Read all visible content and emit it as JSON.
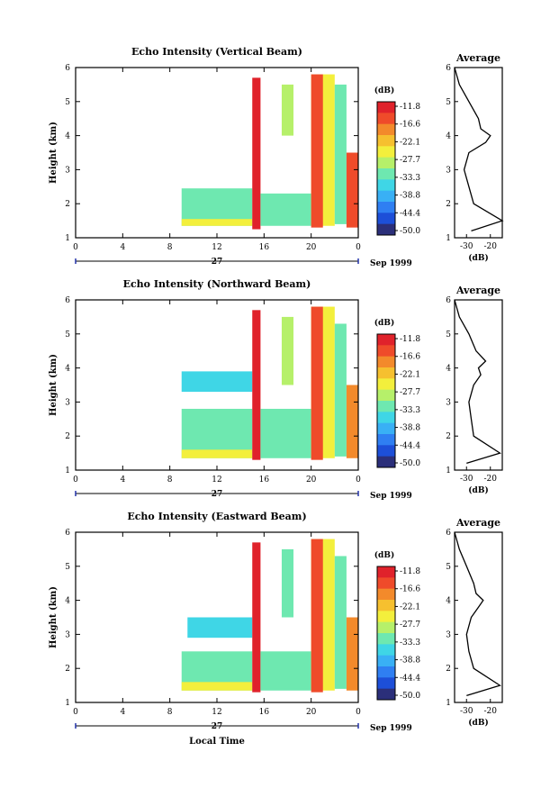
{
  "figure": {
    "xlabel": "Local Time",
    "date_day": "27",
    "date_month_year": "Sep 1999",
    "colorbar_unit": "(dB)",
    "colorbar_ticks": [
      "-11.8",
      "-16.6",
      "-22.1",
      "-27.7",
      "-33.3",
      "-38.8",
      "-44.4",
      "-50.0"
    ],
    "colormap": [
      "#2b2f7a",
      "#1d4fd8",
      "#2f7ff2",
      "#39b0f5",
      "#3fd6e6",
      "#6ee8b0",
      "#b6f06a",
      "#f3ef3c",
      "#f6c02f",
      "#f38a2b",
      "#ef4b2a",
      "#e0222b"
    ],
    "average_title": "Average",
    "average_xlabel": "(dB)"
  },
  "chart_data": [
    {
      "type": "heatmap",
      "title": "Echo Intensity (Vertical Beam)",
      "xlabel": "",
      "ylabel": "Height (km)",
      "xlim": [
        0,
        24
      ],
      "x_ticks": [
        "0",
        "4",
        "8",
        "12",
        "16",
        "20",
        "0"
      ],
      "ylim": [
        1,
        6
      ],
      "y_ticks": [
        "1",
        "2",
        "3",
        "4",
        "5",
        "6"
      ],
      "zlim": [
        -50.0,
        -11.8
      ],
      "regions": [
        {
          "t": [
            9.0,
            15.0
          ],
          "h": [
            1.35,
            2.45
          ],
          "db": -34
        },
        {
          "t": [
            9.0,
            15.0
          ],
          "h": [
            1.35,
            1.55
          ],
          "db": -24
        },
        {
          "t": [
            15.0,
            15.7
          ],
          "h": [
            1.25,
            5.7
          ],
          "db": -12
        },
        {
          "t": [
            15.7,
            20.0
          ],
          "h": [
            1.35,
            2.3
          ],
          "db": -32
        },
        {
          "t": [
            17.5,
            18.5
          ],
          "h": [
            4.0,
            5.5
          ],
          "db": -30
        },
        {
          "t": [
            20.0,
            22.0
          ],
          "h": [
            1.35,
            5.8
          ],
          "db": -27
        },
        {
          "t": [
            20.0,
            21.0
          ],
          "h": [
            1.3,
            5.8
          ],
          "db": -15
        },
        {
          "t": [
            22.0,
            23.0
          ],
          "h": [
            1.4,
            5.5
          ],
          "db": -33
        },
        {
          "t": [
            23.0,
            24.0
          ],
          "h": [
            1.3,
            3.5
          ],
          "db": -14
        }
      ],
      "average": {
        "xlim": [
          -35,
          -15
        ],
        "x_ticks": [
          "-30",
          "-20"
        ],
        "height": [
          1.2,
          1.5,
          2.0,
          2.5,
          3.0,
          3.5,
          3.8,
          4.0,
          4.2,
          4.5,
          5.0,
          5.5,
          6.0
        ],
        "db": [
          -28,
          -15,
          -27,
          -29,
          -31,
          -29,
          -22,
          -20,
          -24,
          -25,
          -29,
          -33,
          -35
        ]
      }
    },
    {
      "type": "heatmap",
      "title": "Echo Intensity (Northward Beam)",
      "xlabel": "",
      "ylabel": "Height (km)",
      "xlim": [
        0,
        24
      ],
      "x_ticks": [
        "0",
        "4",
        "8",
        "12",
        "16",
        "20",
        "0"
      ],
      "ylim": [
        1,
        6
      ],
      "y_ticks": [
        "1",
        "2",
        "3",
        "4",
        "5",
        "6"
      ],
      "zlim": [
        -50.0,
        -11.8
      ],
      "regions": [
        {
          "t": [
            9.0,
            15.0
          ],
          "h": [
            1.35,
            2.8
          ],
          "db": -33
        },
        {
          "t": [
            9.0,
            15.0
          ],
          "h": [
            3.3,
            3.9
          ],
          "db": -35
        },
        {
          "t": [
            9.0,
            15.0
          ],
          "h": [
            1.35,
            1.6
          ],
          "db": -24
        },
        {
          "t": [
            15.0,
            15.7
          ],
          "h": [
            1.3,
            5.7
          ],
          "db": -12
        },
        {
          "t": [
            15.7,
            20.0
          ],
          "h": [
            1.35,
            2.8
          ],
          "db": -31
        },
        {
          "t": [
            17.5,
            18.5
          ],
          "h": [
            3.5,
            5.5
          ],
          "db": -30
        },
        {
          "t": [
            20.0,
            22.0
          ],
          "h": [
            1.35,
            5.8
          ],
          "db": -26
        },
        {
          "t": [
            20.0,
            21.0
          ],
          "h": [
            1.3,
            5.8
          ],
          "db": -15
        },
        {
          "t": [
            22.0,
            23.0
          ],
          "h": [
            1.4,
            5.3
          ],
          "db": -32
        },
        {
          "t": [
            23.0,
            24.0
          ],
          "h": [
            1.35,
            3.5
          ],
          "db": -20
        }
      ],
      "average": {
        "xlim": [
          -35,
          -15
        ],
        "x_ticks": [
          "-30",
          "-20"
        ],
        "height": [
          1.2,
          1.5,
          2.0,
          2.5,
          3.0,
          3.5,
          3.8,
          4.0,
          4.2,
          4.5,
          5.0,
          5.5,
          6.0
        ],
        "db": [
          -30,
          -16,
          -27,
          -28,
          -29,
          -27,
          -24,
          -25,
          -22,
          -26,
          -29,
          -33,
          -35
        ]
      }
    },
    {
      "type": "heatmap",
      "title": "Echo Intensity (Eastward Beam)",
      "xlabel": "Local Time",
      "ylabel": "Height (km)",
      "xlim": [
        0,
        24
      ],
      "x_ticks": [
        "0",
        "4",
        "8",
        "12",
        "16",
        "20",
        "0"
      ],
      "ylim": [
        1,
        6
      ],
      "y_ticks": [
        "1",
        "2",
        "3",
        "4",
        "5",
        "6"
      ],
      "zlim": [
        -50.0,
        -11.8
      ],
      "regions": [
        {
          "t": [
            9.0,
            15.0
          ],
          "h": [
            1.35,
            2.5
          ],
          "db": -34
        },
        {
          "t": [
            9.5,
            15.0
          ],
          "h": [
            2.9,
            3.5
          ],
          "db": -35
        },
        {
          "t": [
            9.0,
            15.0
          ],
          "h": [
            1.35,
            1.6
          ],
          "db": -24
        },
        {
          "t": [
            15.0,
            15.7
          ],
          "h": [
            1.3,
            5.7
          ],
          "db": -12
        },
        {
          "t": [
            15.7,
            20.0
          ],
          "h": [
            1.35,
            2.5
          ],
          "db": -31
        },
        {
          "t": [
            17.5,
            18.5
          ],
          "h": [
            3.5,
            5.5
          ],
          "db": -31
        },
        {
          "t": [
            20.0,
            22.0
          ],
          "h": [
            1.35,
            5.8
          ],
          "db": -25
        },
        {
          "t": [
            20.0,
            21.0
          ],
          "h": [
            1.3,
            5.8
          ],
          "db": -14
        },
        {
          "t": [
            22.0,
            23.0
          ],
          "h": [
            1.4,
            5.3
          ],
          "db": -32
        },
        {
          "t": [
            23.0,
            24.0
          ],
          "h": [
            1.35,
            3.5
          ],
          "db": -20
        }
      ],
      "average": {
        "xlim": [
          -35,
          -15
        ],
        "x_ticks": [
          "-30",
          "-20"
        ],
        "height": [
          1.2,
          1.5,
          2.0,
          2.5,
          3.0,
          3.5,
          3.8,
          4.0,
          4.2,
          4.5,
          5.0,
          5.5,
          6.0
        ],
        "db": [
          -30,
          -16,
          -27,
          -29,
          -30,
          -28,
          -25,
          -23,
          -26,
          -27,
          -30,
          -33,
          -35
        ]
      }
    }
  ]
}
